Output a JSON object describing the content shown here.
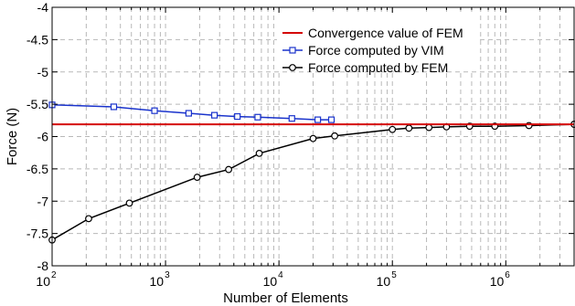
{
  "chart_data": {
    "type": "line",
    "xlabel": "Number of Elements",
    "ylabel": "Force (N)",
    "x_scale": "log",
    "xlim": [
      100,
      4000000
    ],
    "ylim": [
      -8,
      -4
    ],
    "grid": true,
    "legend_position": "top-right",
    "x_ticks": [
      {
        "base": "10",
        "exp": "2",
        "value": 100
      },
      {
        "base": "10",
        "exp": "3",
        "value": 1000
      },
      {
        "base": "10",
        "exp": "4",
        "value": 10000
      },
      {
        "base": "10",
        "exp": "5",
        "value": 100000
      },
      {
        "base": "10",
        "exp": "6",
        "value": 1000000
      }
    ],
    "y_ticks": [
      {
        "label": "-4",
        "value": -4
      },
      {
        "label": "-4.5",
        "value": -4.5
      },
      {
        "label": "-5",
        "value": -5
      },
      {
        "label": "-5.5",
        "value": -5.5
      },
      {
        "label": "-6",
        "value": -6
      },
      {
        "label": "-6.5",
        "value": -6.5
      },
      {
        "label": "-7",
        "value": -7
      },
      {
        "label": "-7.5",
        "value": -7.5
      },
      {
        "label": "-8",
        "value": -8
      }
    ],
    "series": [
      {
        "name": "Convergence value of FEM",
        "color": "#d40000",
        "marker": "none",
        "style": "hline",
        "x": [
          100,
          4000000
        ],
        "y": [
          -5.81,
          -5.81
        ]
      },
      {
        "name": "Force computed by VIM",
        "color": "#1a33cc",
        "marker": "square",
        "x": [
          100,
          350,
          800,
          1600,
          2700,
          4300,
          6500,
          13000,
          22000,
          29000
        ],
        "y": [
          -5.51,
          -5.54,
          -5.6,
          -5.64,
          -5.67,
          -5.69,
          -5.7,
          -5.72,
          -5.74,
          -5.74
        ]
      },
      {
        "name": "Force computed by FEM",
        "color": "#000000",
        "marker": "circle",
        "x": [
          100,
          210,
          480,
          1900,
          3600,
          6700,
          20000,
          31000,
          100000,
          140000,
          210000,
          300000,
          480000,
          800000,
          1600000,
          4000000
        ],
        "y": [
          -7.6,
          -7.27,
          -7.03,
          -6.63,
          -6.51,
          -6.26,
          -6.03,
          -5.99,
          -5.89,
          -5.87,
          -5.86,
          -5.85,
          -5.84,
          -5.84,
          -5.83,
          -5.81
        ]
      }
    ]
  }
}
